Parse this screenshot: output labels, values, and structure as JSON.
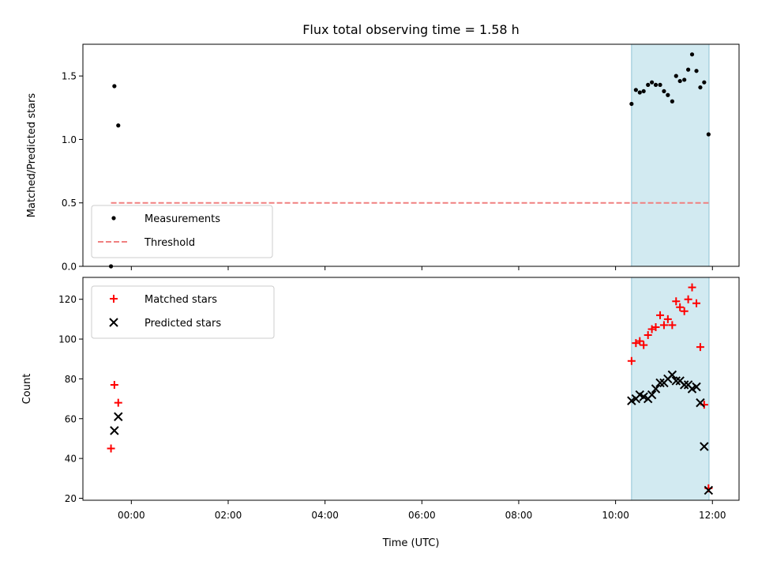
{
  "chart_data": [
    {
      "type": "scatter",
      "title": "Flux total observing time = 1.58 h",
      "xlabel": "",
      "ylabel": "Matched/Predicted stars",
      "ylim": [
        0,
        1.75
      ],
      "yticks": [
        0.0,
        0.5,
        1.0,
        1.5
      ],
      "ytick_labels": [
        "0.0",
        "0.5",
        "1.0",
        "1.5"
      ],
      "xlim_hours": [
        -1.0,
        12.55
      ],
      "highlight_span_hours": [
        10.33,
        11.93
      ],
      "highlight_color": "#add8e6",
      "legend_position": "lower-left",
      "series": [
        {
          "name": "Measurements",
          "color": "#000000",
          "marker": "dot",
          "x_hours": [
            -0.42,
            -0.35,
            -0.27,
            10.33,
            10.42,
            10.5,
            10.58,
            10.67,
            10.75,
            10.83,
            10.92,
            11.0,
            11.08,
            11.17,
            11.25,
            11.33,
            11.42,
            11.5,
            11.58,
            11.67,
            11.75,
            11.83,
            11.92
          ],
          "values": [
            0.0,
            1.42,
            1.11,
            1.28,
            1.39,
            1.37,
            1.38,
            1.43,
            1.45,
            1.43,
            1.43,
            1.38,
            1.35,
            1.3,
            1.5,
            1.46,
            1.47,
            1.55,
            1.67,
            1.54,
            1.41,
            1.45,
            1.04
          ]
        },
        {
          "name": "Threshold",
          "color": "#f08080",
          "style": "dashed",
          "x_hours": [
            -0.42,
            11.92
          ],
          "values": [
            0.5,
            0.5
          ]
        }
      ]
    },
    {
      "type": "scatter",
      "title": "",
      "xlabel": "Time (UTC)",
      "ylabel": "Count",
      "ylim": [
        19,
        131
      ],
      "yticks": [
        20,
        40,
        60,
        80,
        100,
        120
      ],
      "ytick_labels": [
        "20",
        "40",
        "60",
        "80",
        "100",
        "120"
      ],
      "xticks_hours": [
        0,
        2,
        4,
        6,
        8,
        10,
        12
      ],
      "xtick_labels": [
        "00:00",
        "02:00",
        "04:00",
        "06:00",
        "08:00",
        "10:00",
        "12:00"
      ],
      "xlim_hours": [
        -1.0,
        12.55
      ],
      "highlight_span_hours": [
        10.33,
        11.93
      ],
      "highlight_color": "#add8e6",
      "legend_position": "upper-left",
      "series": [
        {
          "name": "Matched stars",
          "color": "#ff0000",
          "marker": "plus",
          "x_hours": [
            -0.42,
            -0.35,
            -0.27,
            10.33,
            10.42,
            10.5,
            10.58,
            10.67,
            10.75,
            10.83,
            10.92,
            11.0,
            11.08,
            11.17,
            11.25,
            11.33,
            11.42,
            11.5,
            11.58,
            11.67,
            11.75,
            11.83,
            11.92
          ],
          "values": [
            45,
            77,
            68,
            89,
            98,
            99,
            97,
            102,
            105,
            106,
            112,
            107,
            110,
            107,
            119,
            116,
            114,
            120,
            126,
            118,
            96,
            67,
            25
          ]
        },
        {
          "name": "Predicted stars",
          "color": "#000000",
          "marker": "x",
          "x_hours": [
            -0.35,
            -0.27,
            10.33,
            10.42,
            10.5,
            10.58,
            10.67,
            10.75,
            10.83,
            10.92,
            11.0,
            11.08,
            11.17,
            11.25,
            11.33,
            11.42,
            11.5,
            11.58,
            11.67,
            11.75,
            11.83,
            11.92
          ],
          "values": [
            54,
            61,
            69,
            70,
            72,
            71,
            70,
            72,
            75,
            78,
            78,
            80,
            82,
            79,
            79,
            77,
            77,
            75,
            76,
            68,
            46,
            24
          ]
        }
      ]
    }
  ]
}
